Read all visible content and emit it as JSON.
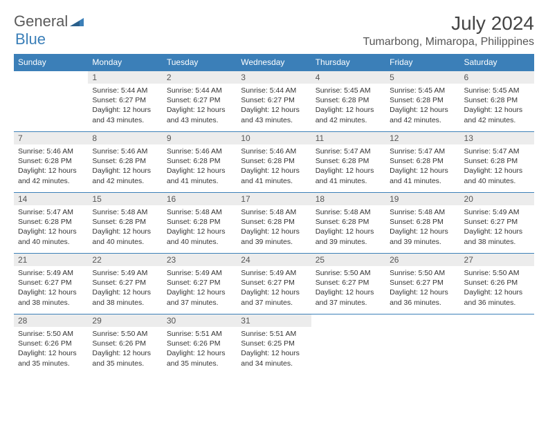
{
  "brand": {
    "general": "General",
    "blue": "Blue"
  },
  "title": "July 2024",
  "location": "Tumarbong, Mimaropa, Philippines",
  "colors": {
    "header_bg": "#3b7fb8",
    "header_fg": "#ffffff",
    "daynum_bg": "#ececec",
    "text": "#333333",
    "divider": "#3b7fb8"
  },
  "weekdays": [
    "Sunday",
    "Monday",
    "Tuesday",
    "Wednesday",
    "Thursday",
    "Friday",
    "Saturday"
  ],
  "start_offset": 1,
  "days": [
    {
      "n": "1",
      "sr": "5:44 AM",
      "ss": "6:27 PM",
      "dl": "12 hours and 43 minutes."
    },
    {
      "n": "2",
      "sr": "5:44 AM",
      "ss": "6:27 PM",
      "dl": "12 hours and 43 minutes."
    },
    {
      "n": "3",
      "sr": "5:44 AM",
      "ss": "6:27 PM",
      "dl": "12 hours and 43 minutes."
    },
    {
      "n": "4",
      "sr": "5:45 AM",
      "ss": "6:28 PM",
      "dl": "12 hours and 42 minutes."
    },
    {
      "n": "5",
      "sr": "5:45 AM",
      "ss": "6:28 PM",
      "dl": "12 hours and 42 minutes."
    },
    {
      "n": "6",
      "sr": "5:45 AM",
      "ss": "6:28 PM",
      "dl": "12 hours and 42 minutes."
    },
    {
      "n": "7",
      "sr": "5:46 AM",
      "ss": "6:28 PM",
      "dl": "12 hours and 42 minutes."
    },
    {
      "n": "8",
      "sr": "5:46 AM",
      "ss": "6:28 PM",
      "dl": "12 hours and 42 minutes."
    },
    {
      "n": "9",
      "sr": "5:46 AM",
      "ss": "6:28 PM",
      "dl": "12 hours and 41 minutes."
    },
    {
      "n": "10",
      "sr": "5:46 AM",
      "ss": "6:28 PM",
      "dl": "12 hours and 41 minutes."
    },
    {
      "n": "11",
      "sr": "5:47 AM",
      "ss": "6:28 PM",
      "dl": "12 hours and 41 minutes."
    },
    {
      "n": "12",
      "sr": "5:47 AM",
      "ss": "6:28 PM",
      "dl": "12 hours and 41 minutes."
    },
    {
      "n": "13",
      "sr": "5:47 AM",
      "ss": "6:28 PM",
      "dl": "12 hours and 40 minutes."
    },
    {
      "n": "14",
      "sr": "5:47 AM",
      "ss": "6:28 PM",
      "dl": "12 hours and 40 minutes."
    },
    {
      "n": "15",
      "sr": "5:48 AM",
      "ss": "6:28 PM",
      "dl": "12 hours and 40 minutes."
    },
    {
      "n": "16",
      "sr": "5:48 AM",
      "ss": "6:28 PM",
      "dl": "12 hours and 40 minutes."
    },
    {
      "n": "17",
      "sr": "5:48 AM",
      "ss": "6:28 PM",
      "dl": "12 hours and 39 minutes."
    },
    {
      "n": "18",
      "sr": "5:48 AM",
      "ss": "6:28 PM",
      "dl": "12 hours and 39 minutes."
    },
    {
      "n": "19",
      "sr": "5:48 AM",
      "ss": "6:28 PM",
      "dl": "12 hours and 39 minutes."
    },
    {
      "n": "20",
      "sr": "5:49 AM",
      "ss": "6:27 PM",
      "dl": "12 hours and 38 minutes."
    },
    {
      "n": "21",
      "sr": "5:49 AM",
      "ss": "6:27 PM",
      "dl": "12 hours and 38 minutes."
    },
    {
      "n": "22",
      "sr": "5:49 AM",
      "ss": "6:27 PM",
      "dl": "12 hours and 38 minutes."
    },
    {
      "n": "23",
      "sr": "5:49 AM",
      "ss": "6:27 PM",
      "dl": "12 hours and 37 minutes."
    },
    {
      "n": "24",
      "sr": "5:49 AM",
      "ss": "6:27 PM",
      "dl": "12 hours and 37 minutes."
    },
    {
      "n": "25",
      "sr": "5:50 AM",
      "ss": "6:27 PM",
      "dl": "12 hours and 37 minutes."
    },
    {
      "n": "26",
      "sr": "5:50 AM",
      "ss": "6:27 PM",
      "dl": "12 hours and 36 minutes."
    },
    {
      "n": "27",
      "sr": "5:50 AM",
      "ss": "6:26 PM",
      "dl": "12 hours and 36 minutes."
    },
    {
      "n": "28",
      "sr": "5:50 AM",
      "ss": "6:26 PM",
      "dl": "12 hours and 35 minutes."
    },
    {
      "n": "29",
      "sr": "5:50 AM",
      "ss": "6:26 PM",
      "dl": "12 hours and 35 minutes."
    },
    {
      "n": "30",
      "sr": "5:51 AM",
      "ss": "6:26 PM",
      "dl": "12 hours and 35 minutes."
    },
    {
      "n": "31",
      "sr": "5:51 AM",
      "ss": "6:25 PM",
      "dl": "12 hours and 34 minutes."
    }
  ],
  "labels": {
    "sunrise": "Sunrise:",
    "sunset": "Sunset:",
    "daylight": "Daylight:"
  }
}
